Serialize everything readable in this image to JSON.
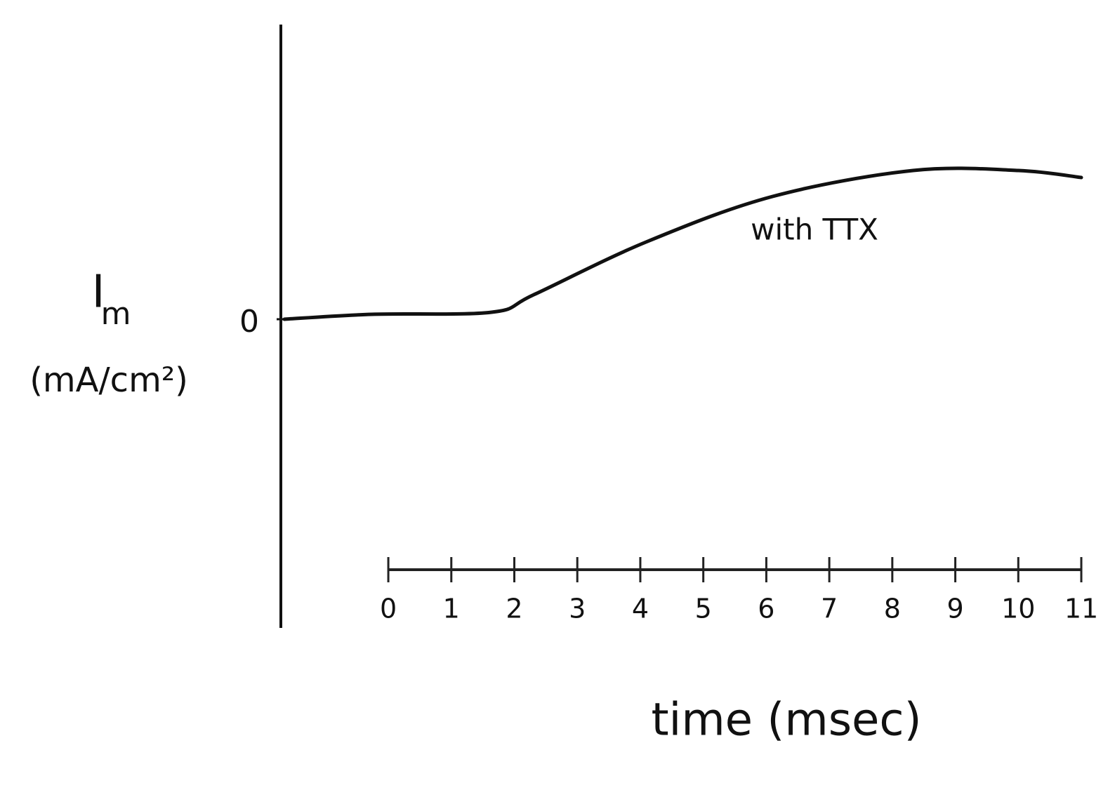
{
  "chart_data": {
    "type": "line",
    "y_label_main": "I",
    "y_label_sub": "m",
    "y_label_unit": "(mA/cm²)",
    "x_label": "time (msec)",
    "annotation": "with TTX",
    "x": [
      -1.65,
      -0.26,
      1.64,
      2.31,
      4.09,
      6.1,
      8.33,
      10.0,
      11.0
    ],
    "series": [
      {
        "color": "#111111",
        "values": [
          0,
          0.07,
          0.1,
          0.35,
          1.1,
          1.75,
          2.12,
          2.12,
          2.02
        ]
      }
    ],
    "xlim": [
      -1.65,
      11
    ],
    "xticks": [
      0,
      1,
      2,
      3,
      4,
      5,
      6,
      7,
      8,
      9,
      10,
      11
    ],
    "ylim": [
      -4.4,
      4.2
    ],
    "yticks": [
      0
    ]
  }
}
